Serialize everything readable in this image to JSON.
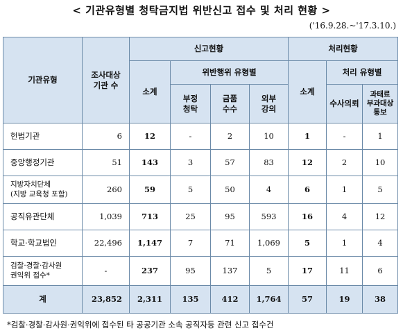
{
  "title": "< 기관유형별 청탁금지법 위반신고 접수 및 처리 현황 >",
  "period": "('16.9.28.~'17.3.10.)",
  "headers": {
    "org_type": "기관유형",
    "survey_count": "조사대상\n기관 수",
    "report_status": "신고현황",
    "subtotal": "소계",
    "violation_by_type": "위반행위 유형별",
    "improper_solicitation": "부정\n청탁",
    "money_receipt": "금품\n수수",
    "outside_lecture": "외부\n강의",
    "processing_status": "처리현황",
    "processing_subtotal": "소계",
    "by_processing_type": "처리 유형별",
    "investigation_request": "수사의뢰",
    "fine_notification": "과태료\n부과대상\n통보"
  },
  "rows": [
    {
      "org": "헌법기관",
      "count": "6",
      "subtotal": "12",
      "improper": "-",
      "money": "2",
      "lecture": "10",
      "proc_subtotal": "1",
      "investigation": "-",
      "fine": "1"
    },
    {
      "org": "중앙행정기관",
      "count": "51",
      "subtotal": "143",
      "improper": "3",
      "money": "57",
      "lecture": "83",
      "proc_subtotal": "12",
      "investigation": "2",
      "fine": "10"
    },
    {
      "org": "지방자치단체\n(지방 교육청 포함)",
      "count": "260",
      "subtotal": "59",
      "improper": "5",
      "money": "50",
      "lecture": "4",
      "proc_subtotal": "6",
      "investigation": "1",
      "fine": "5"
    },
    {
      "org": "공직유관단체",
      "count": "1,039",
      "subtotal": "713",
      "improper": "25",
      "money": "95",
      "lecture": "593",
      "proc_subtotal": "16",
      "investigation": "4",
      "fine": "12"
    },
    {
      "org": "학교·학교법인",
      "count": "22,496",
      "subtotal": "1,147",
      "improper": "7",
      "money": "71",
      "lecture": "1,069",
      "proc_subtotal": "5",
      "investigation": "1",
      "fine": "4"
    },
    {
      "org": "검찰·경찰·감사원\n권익위 접수*",
      "count": "-",
      "subtotal": "237",
      "improper": "95",
      "money": "137",
      "lecture": "5",
      "proc_subtotal": "17",
      "investigation": "11",
      "fine": "6"
    }
  ],
  "total": {
    "org": "계",
    "count": "23,852",
    "subtotal": "2,311",
    "improper": "135",
    "money": "412",
    "lecture": "1,764",
    "proc_subtotal": "57",
    "investigation": "19",
    "fine": "38"
  },
  "footnote": "*검찰·경찰·감사원·권익위에 접수된 타 공공기관 소속 공직자등 관련 신고 접수건"
}
